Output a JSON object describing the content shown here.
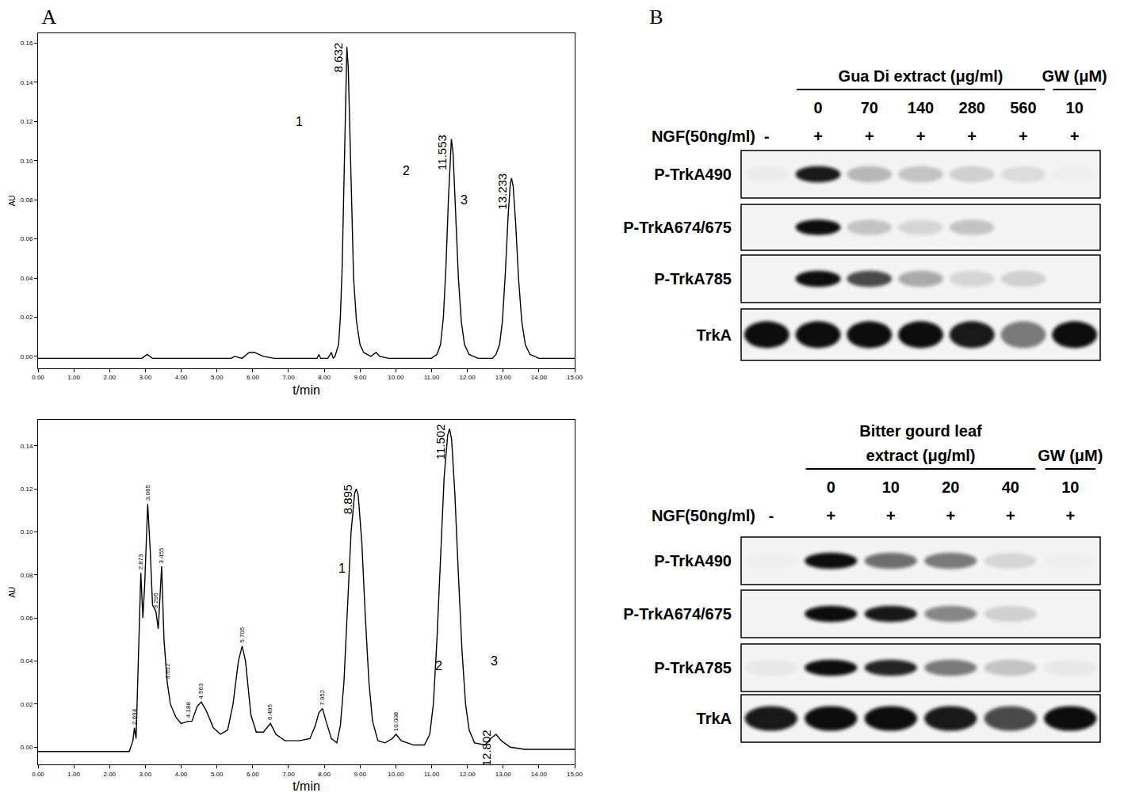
{
  "panel_labels": [
    "A",
    "B"
  ],
  "chart_data": [
    {
      "type": "line",
      "color": "#000000",
      "xlabel": "t/min",
      "ylabel": "AU",
      "x": [
        0,
        2.9,
        3.05,
        3.2,
        5.4,
        5.5,
        5.7,
        5.9,
        6.05,
        6.3,
        6.6,
        7.8,
        7.85,
        7.9,
        8.1,
        8.2,
        8.25,
        8.3,
        8.4,
        8.45,
        8.5,
        8.55,
        8.6,
        8.632,
        8.67,
        8.72,
        8.77,
        8.82,
        8.9,
        9.0,
        9.1,
        9.3,
        9.45,
        9.55,
        9.8,
        11.0,
        11.15,
        11.25,
        11.33,
        11.4,
        11.47,
        11.53,
        11.553,
        11.6,
        11.67,
        11.75,
        11.83,
        11.92,
        12.05,
        12.3,
        12.7,
        12.8,
        12.9,
        12.98,
        13.06,
        13.14,
        13.2,
        13.233,
        13.28,
        13.35,
        13.43,
        13.52,
        13.62,
        13.75,
        14.0,
        15
      ],
      "values": [
        -0.001,
        -0.001,
        0.001,
        -0.001,
        -0.001,
        0.0,
        -0.001,
        0.002,
        0.002,
        0.0,
        -0.001,
        -0.001,
        0.001,
        -0.001,
        -0.001,
        0.002,
        -0.001,
        0.0,
        0.006,
        0.02,
        0.045,
        0.09,
        0.14,
        0.158,
        0.148,
        0.11,
        0.07,
        0.04,
        0.018,
        0.006,
        0.002,
        0.0,
        0.002,
        0.0,
        -0.001,
        -0.001,
        0.001,
        0.006,
        0.02,
        0.045,
        0.08,
        0.107,
        0.111,
        0.104,
        0.075,
        0.04,
        0.018,
        0.006,
        0.001,
        -0.001,
        -0.001,
        0.001,
        0.006,
        0.018,
        0.042,
        0.072,
        0.088,
        0.091,
        0.087,
        0.068,
        0.04,
        0.018,
        0.006,
        0.001,
        -0.001,
        -0.001
      ],
      "xlim": [
        0,
        15
      ],
      "xticks": [
        {
          "value": 0,
          "label": "0.00"
        },
        {
          "value": 1,
          "label": "1.00"
        },
        {
          "value": 2,
          "label": "2.00"
        },
        {
          "value": 3,
          "label": "3.00"
        },
        {
          "value": 4,
          "label": "4.00"
        },
        {
          "value": 5,
          "label": "5.00"
        },
        {
          "value": 6,
          "label": "6.00"
        },
        {
          "value": 7,
          "label": "7.00"
        },
        {
          "value": 8,
          "label": "8.00"
        },
        {
          "value": 9,
          "label": "9.00"
        },
        {
          "value": 10,
          "label": "10.00"
        },
        {
          "value": 11,
          "label": "11.00"
        },
        {
          "value": 12,
          "label": "12.00"
        },
        {
          "value": 13,
          "label": "13.00"
        },
        {
          "value": 14,
          "label": "14.00"
        },
        {
          "value": 15,
          "label": "15.00"
        }
      ],
      "ylim": [
        -0.006,
        0.165
      ],
      "yticks": [
        {
          "value": 0,
          "label": "0.00"
        },
        {
          "value": 0.02,
          "label": "0.02"
        },
        {
          "value": 0.04,
          "label": "0.04"
        },
        {
          "value": 0.06,
          "label": "0.06"
        },
        {
          "value": 0.08,
          "label": "0.08"
        },
        {
          "value": 0.1,
          "label": "0.10"
        },
        {
          "value": 0.12,
          "label": "0.12"
        },
        {
          "value": 0.14,
          "label": "0.14"
        },
        {
          "value": 0.16,
          "label": "0.16"
        }
      ],
      "major_peaks": [
        {
          "x": 8.632,
          "y": 0.158
        },
        {
          "x": 11.553,
          "y": 0.111
        },
        {
          "x": 13.233,
          "y": 0.091
        }
      ],
      "compound_labels": [
        {
          "label": "1",
          "x": 7.3,
          "y": 0.12
        },
        {
          "label": "2",
          "x": 10.3,
          "y": 0.095
        },
        {
          "label": "3",
          "x": 11.9,
          "y": 0.08
        }
      ]
    },
    {
      "type": "line",
      "color": "#000000",
      "xlabel": "t/min",
      "ylabel": "AU",
      "x": [
        0,
        2.55,
        2.65,
        2.694,
        2.74,
        2.8,
        2.873,
        2.93,
        2.98,
        3.065,
        3.14,
        3.2,
        3.295,
        3.36,
        3.455,
        3.52,
        3.612,
        3.7,
        3.85,
        4.0,
        4.188,
        4.3,
        4.45,
        4.563,
        4.7,
        4.9,
        5.1,
        5.3,
        5.45,
        5.6,
        5.705,
        5.8,
        5.95,
        6.1,
        6.3,
        6.495,
        6.65,
        6.9,
        7.3,
        7.6,
        7.75,
        7.85,
        7.952,
        8.05,
        8.2,
        8.35,
        8.45,
        8.55,
        8.65,
        8.75,
        8.85,
        8.895,
        8.95,
        9.05,
        9.15,
        9.25,
        9.35,
        9.5,
        9.7,
        9.9,
        10.008,
        10.15,
        10.5,
        10.8,
        10.95,
        11.05,
        11.15,
        11.25,
        11.35,
        11.45,
        11.502,
        11.56,
        11.65,
        11.75,
        11.85,
        11.95,
        12.05,
        12.2,
        12.5,
        12.65,
        12.802,
        12.95,
        13.2,
        13.6,
        15
      ],
      "values": [
        -0.002,
        -0.002,
        0.003,
        0.009,
        0.004,
        0.04,
        0.081,
        0.06,
        0.075,
        0.113,
        0.09,
        0.066,
        0.063,
        0.055,
        0.084,
        0.05,
        0.03,
        0.02,
        0.014,
        0.011,
        0.012,
        0.012,
        0.019,
        0.021,
        0.017,
        0.009,
        0.006,
        0.008,
        0.02,
        0.04,
        0.047,
        0.04,
        0.015,
        0.007,
        0.007,
        0.011,
        0.006,
        0.003,
        0.003,
        0.004,
        0.01,
        0.016,
        0.018,
        0.012,
        0.004,
        0.002,
        0.01,
        0.03,
        0.065,
        0.1,
        0.118,
        0.12,
        0.117,
        0.095,
        0.06,
        0.03,
        0.012,
        0.003,
        0.002,
        0.004,
        0.006,
        0.003,
        0.001,
        0.001,
        0.006,
        0.02,
        0.05,
        0.09,
        0.125,
        0.145,
        0.148,
        0.143,
        0.118,
        0.08,
        0.045,
        0.02,
        0.008,
        0.002,
        0.001,
        0.004,
        0.006,
        0.003,
        0.0,
        -0.001,
        -0.001
      ],
      "xlim": [
        0,
        15
      ],
      "xticks": [
        {
          "value": 0,
          "label": "0.00"
        },
        {
          "value": 1,
          "label": "1.00"
        },
        {
          "value": 2,
          "label": "2.00"
        },
        {
          "value": 3,
          "label": "3.00"
        },
        {
          "value": 4,
          "label": "4.00"
        },
        {
          "value": 5,
          "label": "5.00"
        },
        {
          "value": 6,
          "label": "6.00"
        },
        {
          "value": 7,
          "label": "7.00"
        },
        {
          "value": 8,
          "label": "8.00"
        },
        {
          "value": 9,
          "label": "9.00"
        },
        {
          "value": 10,
          "label": "10.00"
        },
        {
          "value": 11,
          "label": "11.00"
        },
        {
          "value": 12,
          "label": "12.00"
        },
        {
          "value": 13,
          "label": "13.00"
        },
        {
          "value": 14,
          "label": "14.00"
        },
        {
          "value": 15,
          "label": "15.00"
        }
      ],
      "ylim": [
        -0.008,
        0.152
      ],
      "yticks": [
        {
          "value": 0,
          "label": "0.00"
        },
        {
          "value": 0.02,
          "label": "0.02"
        },
        {
          "value": 0.04,
          "label": "0.04"
        },
        {
          "value": 0.06,
          "label": "0.06"
        },
        {
          "value": 0.08,
          "label": "0.08"
        },
        {
          "value": 0.1,
          "label": "0.10"
        },
        {
          "value": 0.12,
          "label": "0.12"
        },
        {
          "value": 0.14,
          "label": "0.14"
        }
      ],
      "major_peaks": [
        {
          "x": 8.895,
          "y": 0.12
        },
        {
          "x": 11.502,
          "y": 0.148
        },
        {
          "x": 12.802,
          "y": 0.006
        }
      ],
      "minor_peaks": [
        {
          "x": 2.694,
          "y": 0.009
        },
        {
          "x": 2.873,
          "y": 0.081
        },
        {
          "x": 3.065,
          "y": 0.113
        },
        {
          "x": 3.295,
          "y": 0.063
        },
        {
          "x": 3.455,
          "y": 0.084
        },
        {
          "x": 3.612,
          "y": 0.03
        },
        {
          "x": 4.188,
          "y": 0.012
        },
        {
          "x": 4.563,
          "y": 0.021
        },
        {
          "x": 5.705,
          "y": 0.047
        },
        {
          "x": 6.495,
          "y": 0.011
        },
        {
          "x": 7.952,
          "y": 0.018
        },
        {
          "x": 10.008,
          "y": 0.006
        }
      ],
      "compound_labels": [
        {
          "label": "1",
          "x": 8.5,
          "y": 0.083
        },
        {
          "label": "2",
          "x": 11.2,
          "y": 0.038
        },
        {
          "label": "3",
          "x": 12.75,
          "y": 0.04
        }
      ]
    }
  ],
  "blots": [
    {
      "groups": [
        {
          "label": [
            "Gua Di extract (μg/ml)"
          ],
          "doses": [
            0,
            70,
            140,
            280,
            560
          ]
        },
        {
          "label": [
            "GW (μM)"
          ],
          "doses": [
            10
          ]
        }
      ],
      "treatment": "NGF(50ng/ml)",
      "treatment_marks": [
        "-",
        "+",
        "+",
        "+",
        "+",
        "+",
        "+"
      ],
      "rows": [
        {
          "label": "P-TrkA490",
          "intensity": [
            0.03,
            0.9,
            0.25,
            0.2,
            0.15,
            0.1,
            0.02
          ]
        },
        {
          "label": "P-TrkA674/675",
          "intensity": [
            0.0,
            0.95,
            0.2,
            0.12,
            0.2,
            0.0,
            0.0
          ]
        },
        {
          "label": "P-TrkA785",
          "intensity": [
            0.0,
            0.95,
            0.7,
            0.3,
            0.12,
            0.15,
            0.0
          ]
        },
        {
          "label": "TrkA",
          "intensity": [
            0.95,
            0.95,
            0.95,
            0.95,
            0.9,
            0.5,
            0.95
          ]
        }
      ]
    },
    {
      "groups": [
        {
          "label": [
            "Bitter gourd leaf",
            "extract (μg/ml)"
          ],
          "doses": [
            0,
            10,
            20,
            40
          ]
        },
        {
          "label": [
            "GW (μM)"
          ],
          "doses": [
            10
          ]
        }
      ],
      "treatment": "NGF(50ng/ml)",
      "treatment_marks": [
        "-",
        "+",
        "+",
        "+",
        "+",
        "+"
      ],
      "rows": [
        {
          "label": "P-TrkA490",
          "intensity": [
            0.02,
            0.95,
            0.55,
            0.5,
            0.12,
            0.02
          ]
        },
        {
          "label": "P-TrkA674/675",
          "intensity": [
            0.0,
            0.95,
            0.9,
            0.45,
            0.15,
            0.0
          ]
        },
        {
          "label": "P-TrkA785",
          "intensity": [
            0.05,
            0.95,
            0.85,
            0.5,
            0.2,
            0.05
          ]
        },
        {
          "label": "TrkA",
          "intensity": [
            0.9,
            0.95,
            0.95,
            0.9,
            0.7,
            0.95
          ]
        }
      ]
    }
  ]
}
